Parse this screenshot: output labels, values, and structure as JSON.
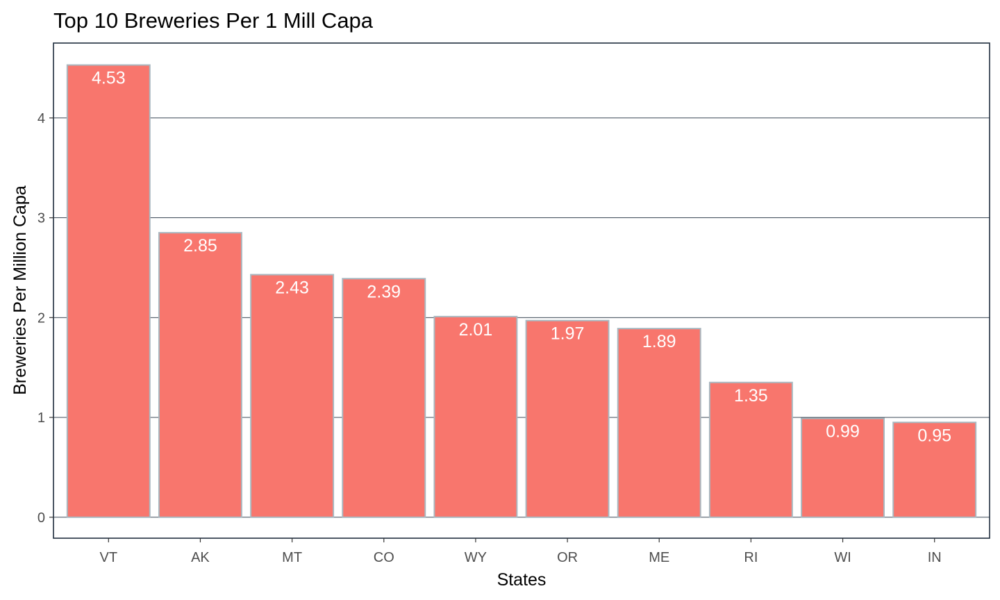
{
  "chart_data": {
    "type": "bar",
    "title": "Top 10 Breweries Per 1 Mill Capa",
    "xlabel": "States",
    "ylabel": "Breweries Per Million Capa",
    "categories": [
      "VT",
      "AK",
      "MT",
      "CO",
      "WY",
      "OR",
      "ME",
      "RI",
      "WI",
      "IN"
    ],
    "values": [
      4.53,
      2.85,
      2.43,
      2.39,
      2.01,
      1.97,
      1.89,
      1.35,
      0.99,
      0.95
    ],
    "data_labels": [
      "4.53",
      "2.85",
      "2.43",
      "2.39",
      "2.01",
      "1.97",
      "1.89",
      "1.35",
      "0.99",
      "0.95"
    ],
    "y_ticks": [
      0,
      1,
      2,
      3,
      4
    ],
    "y_tick_labels": [
      "0",
      "1",
      "2",
      "3",
      "4"
    ],
    "ylim": [
      -0.21,
      4.75
    ],
    "grid": "horizontal major lines",
    "legend": "none",
    "colors": {
      "bar_fill": "#F8766D",
      "bar_outline": "#A9B8C0",
      "data_label": "#ffffff",
      "grid": "#1F2D3D",
      "panel_border": "#1F2D3D",
      "tick_text": "#4d4d4d"
    }
  }
}
